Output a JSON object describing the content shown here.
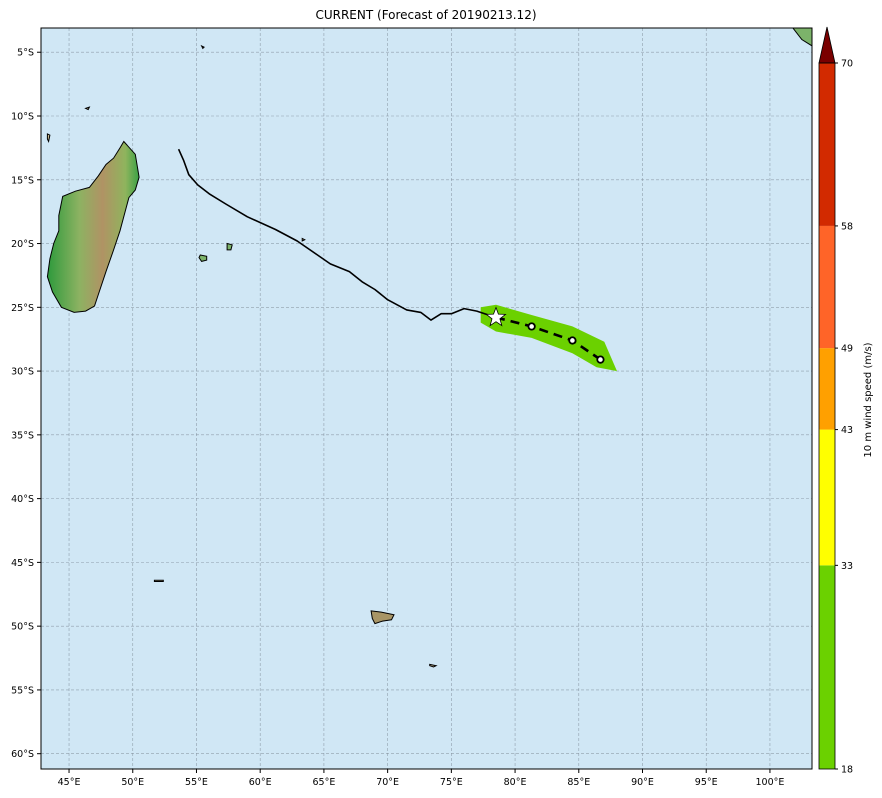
{
  "title": "CURRENT (Forecast of 20190213.12)",
  "colors": {
    "ocean": "#d0e7f5",
    "grid": "#7f8c99",
    "coast": "#000000",
    "track": "#000000",
    "cone": "#6bd100",
    "star_fill": "#ffffff"
  },
  "lon_ticks": [
    {
      "value": 45,
      "label": "45°E"
    },
    {
      "value": 50,
      "label": "50°E"
    },
    {
      "value": 55,
      "label": "55°E"
    },
    {
      "value": 60,
      "label": "60°E"
    },
    {
      "value": 65,
      "label": "65°E"
    },
    {
      "value": 70,
      "label": "70°E"
    },
    {
      "value": 75,
      "label": "75°E"
    },
    {
      "value": 80,
      "label": "80°E"
    },
    {
      "value": 85,
      "label": "85°E"
    },
    {
      "value": 90,
      "label": "90°E"
    },
    {
      "value": 95,
      "label": "95°E"
    },
    {
      "value": 100,
      "label": "100°E"
    }
  ],
  "lat_ticks": [
    {
      "value": -5,
      "label": "5°S"
    },
    {
      "value": -10,
      "label": "10°S"
    },
    {
      "value": -15,
      "label": "15°S"
    },
    {
      "value": -20,
      "label": "20°S"
    },
    {
      "value": -25,
      "label": "25°S"
    },
    {
      "value": -30,
      "label": "30°S"
    },
    {
      "value": -35,
      "label": "35°S"
    },
    {
      "value": -40,
      "label": "40°S"
    },
    {
      "value": -45,
      "label": "45°S"
    },
    {
      "value": -50,
      "label": "50°S"
    },
    {
      "value": -55,
      "label": "55°S"
    },
    {
      "value": -60,
      "label": "60°S"
    }
  ],
  "extent": {
    "lon_min": 42.8,
    "lon_max": 103.3,
    "lat_min": -61.2,
    "lat_max": -3.1
  },
  "past_track": [
    [
      53.6,
      -12.6
    ],
    [
      54.0,
      -13.5
    ],
    [
      54.4,
      -14.6
    ],
    [
      55.1,
      -15.4
    ],
    [
      56.0,
      -16.1
    ],
    [
      57.3,
      -16.9
    ],
    [
      59.0,
      -17.9
    ],
    [
      61.2,
      -18.9
    ],
    [
      62.9,
      -19.8
    ],
    [
      64.5,
      -20.9
    ],
    [
      65.5,
      -21.6
    ],
    [
      67.0,
      -22.2
    ],
    [
      68.0,
      -23.0
    ],
    [
      69.0,
      -23.6
    ],
    [
      70.0,
      -24.4
    ],
    [
      71.5,
      -25.2
    ],
    [
      72.6,
      -25.4
    ],
    [
      73.4,
      -26.0
    ],
    [
      74.2,
      -25.5
    ],
    [
      75.0,
      -25.5
    ],
    [
      76.0,
      -25.1
    ],
    [
      77.0,
      -25.3
    ],
    [
      78.5,
      -25.8
    ]
  ],
  "forecast_track": [
    [
      78.5,
      -25.8
    ],
    [
      81.3,
      -26.5
    ],
    [
      84.5,
      -27.6
    ],
    [
      86.7,
      -29.1
    ]
  ],
  "forecast_points": [
    [
      81.3,
      -26.5
    ],
    [
      84.5,
      -27.6
    ],
    [
      86.7,
      -29.1
    ]
  ],
  "current_position": [
    78.5,
    -25.8
  ],
  "cone_polygon": [
    [
      77.3,
      -25.0
    ],
    [
      78.5,
      -24.8
    ],
    [
      81.3,
      -25.6
    ],
    [
      84.5,
      -26.5
    ],
    [
      87.0,
      -27.7
    ],
    [
      88.0,
      -30.0
    ],
    [
      86.4,
      -29.7
    ],
    [
      84.5,
      -28.6
    ],
    [
      81.3,
      -27.4
    ],
    [
      78.5,
      -26.9
    ],
    [
      77.3,
      -26.2
    ]
  ],
  "colorbar": {
    "label": "10 m wind speed (m/s)",
    "levels": [
      {
        "value": 18,
        "label": "18"
      },
      {
        "value": 33,
        "label": "33"
      },
      {
        "value": 43,
        "label": "43"
      },
      {
        "value": 49,
        "label": "49"
      },
      {
        "value": 58,
        "label": "58"
      },
      {
        "value": 70,
        "label": "70"
      }
    ],
    "bands": [
      {
        "from": 18,
        "to": 33,
        "color": "#6bd100"
      },
      {
        "from": 33,
        "to": 43,
        "color": "#ffff00"
      },
      {
        "from": 43,
        "to": 49,
        "color": "#ffa000"
      },
      {
        "from": 49,
        "to": 58,
        "color": "#ff6428"
      },
      {
        "from": 58,
        "to": 70,
        "color": "#d22a00"
      }
    ],
    "extend_color": "#7a0000"
  },
  "land": [
    {
      "name": "madagascar",
      "fill": "#b39a63",
      "shape": [
        [
          49.3,
          -12.0
        ],
        [
          50.2,
          -13.0
        ],
        [
          50.5,
          -14.8
        ],
        [
          50.2,
          -15.8
        ],
        [
          49.7,
          -16.4
        ],
        [
          49.4,
          -17.5
        ],
        [
          49.0,
          -19.0
        ],
        [
          48.5,
          -20.5
        ],
        [
          47.9,
          -22.2
        ],
        [
          47.3,
          -24.0
        ],
        [
          47.0,
          -24.9
        ],
        [
          46.3,
          -25.3
        ],
        [
          45.4,
          -25.4
        ],
        [
          44.4,
          -25.0
        ],
        [
          43.7,
          -23.8
        ],
        [
          43.3,
          -22.6
        ],
        [
          43.5,
          -21.2
        ],
        [
          43.8,
          -20.0
        ],
        [
          44.2,
          -19.0
        ],
        [
          44.2,
          -17.8
        ],
        [
          44.5,
          -16.3
        ],
        [
          45.5,
          -15.9
        ],
        [
          46.6,
          -15.6
        ],
        [
          47.3,
          -14.7
        ],
        [
          47.9,
          -13.8
        ],
        [
          48.5,
          -13.3
        ],
        [
          49.0,
          -12.5
        ]
      ]
    },
    {
      "name": "la-reunion",
      "fill": "#7cb36a",
      "shape": [
        [
          55.3,
          -20.9
        ],
        [
          55.8,
          -21.0
        ],
        [
          55.8,
          -21.3
        ],
        [
          55.4,
          -21.4
        ],
        [
          55.2,
          -21.1
        ]
      ]
    },
    {
      "name": "mauritius",
      "fill": "#7cb36a",
      "shape": [
        [
          57.4,
          -20.0
        ],
        [
          57.8,
          -20.1
        ],
        [
          57.7,
          -20.5
        ],
        [
          57.4,
          -20.5
        ]
      ]
    },
    {
      "name": "kerguelen",
      "fill": "#a89566",
      "shape": [
        [
          68.7,
          -48.8
        ],
        [
          69.5,
          -48.9
        ],
        [
          70.5,
          -49.1
        ],
        [
          70.3,
          -49.5
        ],
        [
          69.6,
          -49.6
        ],
        [
          69.0,
          -49.8
        ],
        [
          68.8,
          -49.4
        ]
      ]
    },
    {
      "name": "crozet",
      "fill": "#cdbf95",
      "shape": [
        [
          51.7,
          -46.4
        ],
        [
          52.4,
          -46.4
        ],
        [
          52.4,
          -46.5
        ],
        [
          51.7,
          -46.5
        ]
      ]
    },
    {
      "name": "heard",
      "fill": "#cdbf95",
      "shape": [
        [
          73.3,
          -53.0
        ],
        [
          73.8,
          -53.1
        ],
        [
          73.6,
          -53.2
        ],
        [
          73.3,
          -53.1
        ]
      ]
    },
    {
      "name": "sumatra-corner",
      "fill": "#7cb36a",
      "shape": [
        [
          101.8,
          -3.1
        ],
        [
          103.3,
          -3.1
        ],
        [
          103.3,
          -4.5
        ],
        [
          102.5,
          -4.0
        ]
      ]
    },
    {
      "name": "seychelles-a",
      "fill": "#cdbf95",
      "shape": [
        [
          55.4,
          -4.5
        ],
        [
          55.6,
          -4.6
        ],
        [
          55.5,
          -4.7
        ]
      ]
    },
    {
      "name": "comoros",
      "fill": "#cdbf95",
      "shape": [
        [
          43.3,
          -11.4
        ],
        [
          43.5,
          -11.5
        ],
        [
          43.4,
          -12.0
        ],
        [
          43.3,
          -11.8
        ]
      ]
    },
    {
      "name": "farquhar",
      "fill": "#cdbf95",
      "shape": [
        [
          46.3,
          -9.4
        ],
        [
          46.6,
          -9.3
        ],
        [
          46.5,
          -9.5
        ]
      ]
    },
    {
      "name": "tromelin",
      "fill": "#cdbf95",
      "shape": [
        [
          63.3,
          -19.6
        ],
        [
          63.5,
          -19.7
        ],
        [
          63.3,
          -19.8
        ]
      ]
    }
  ]
}
